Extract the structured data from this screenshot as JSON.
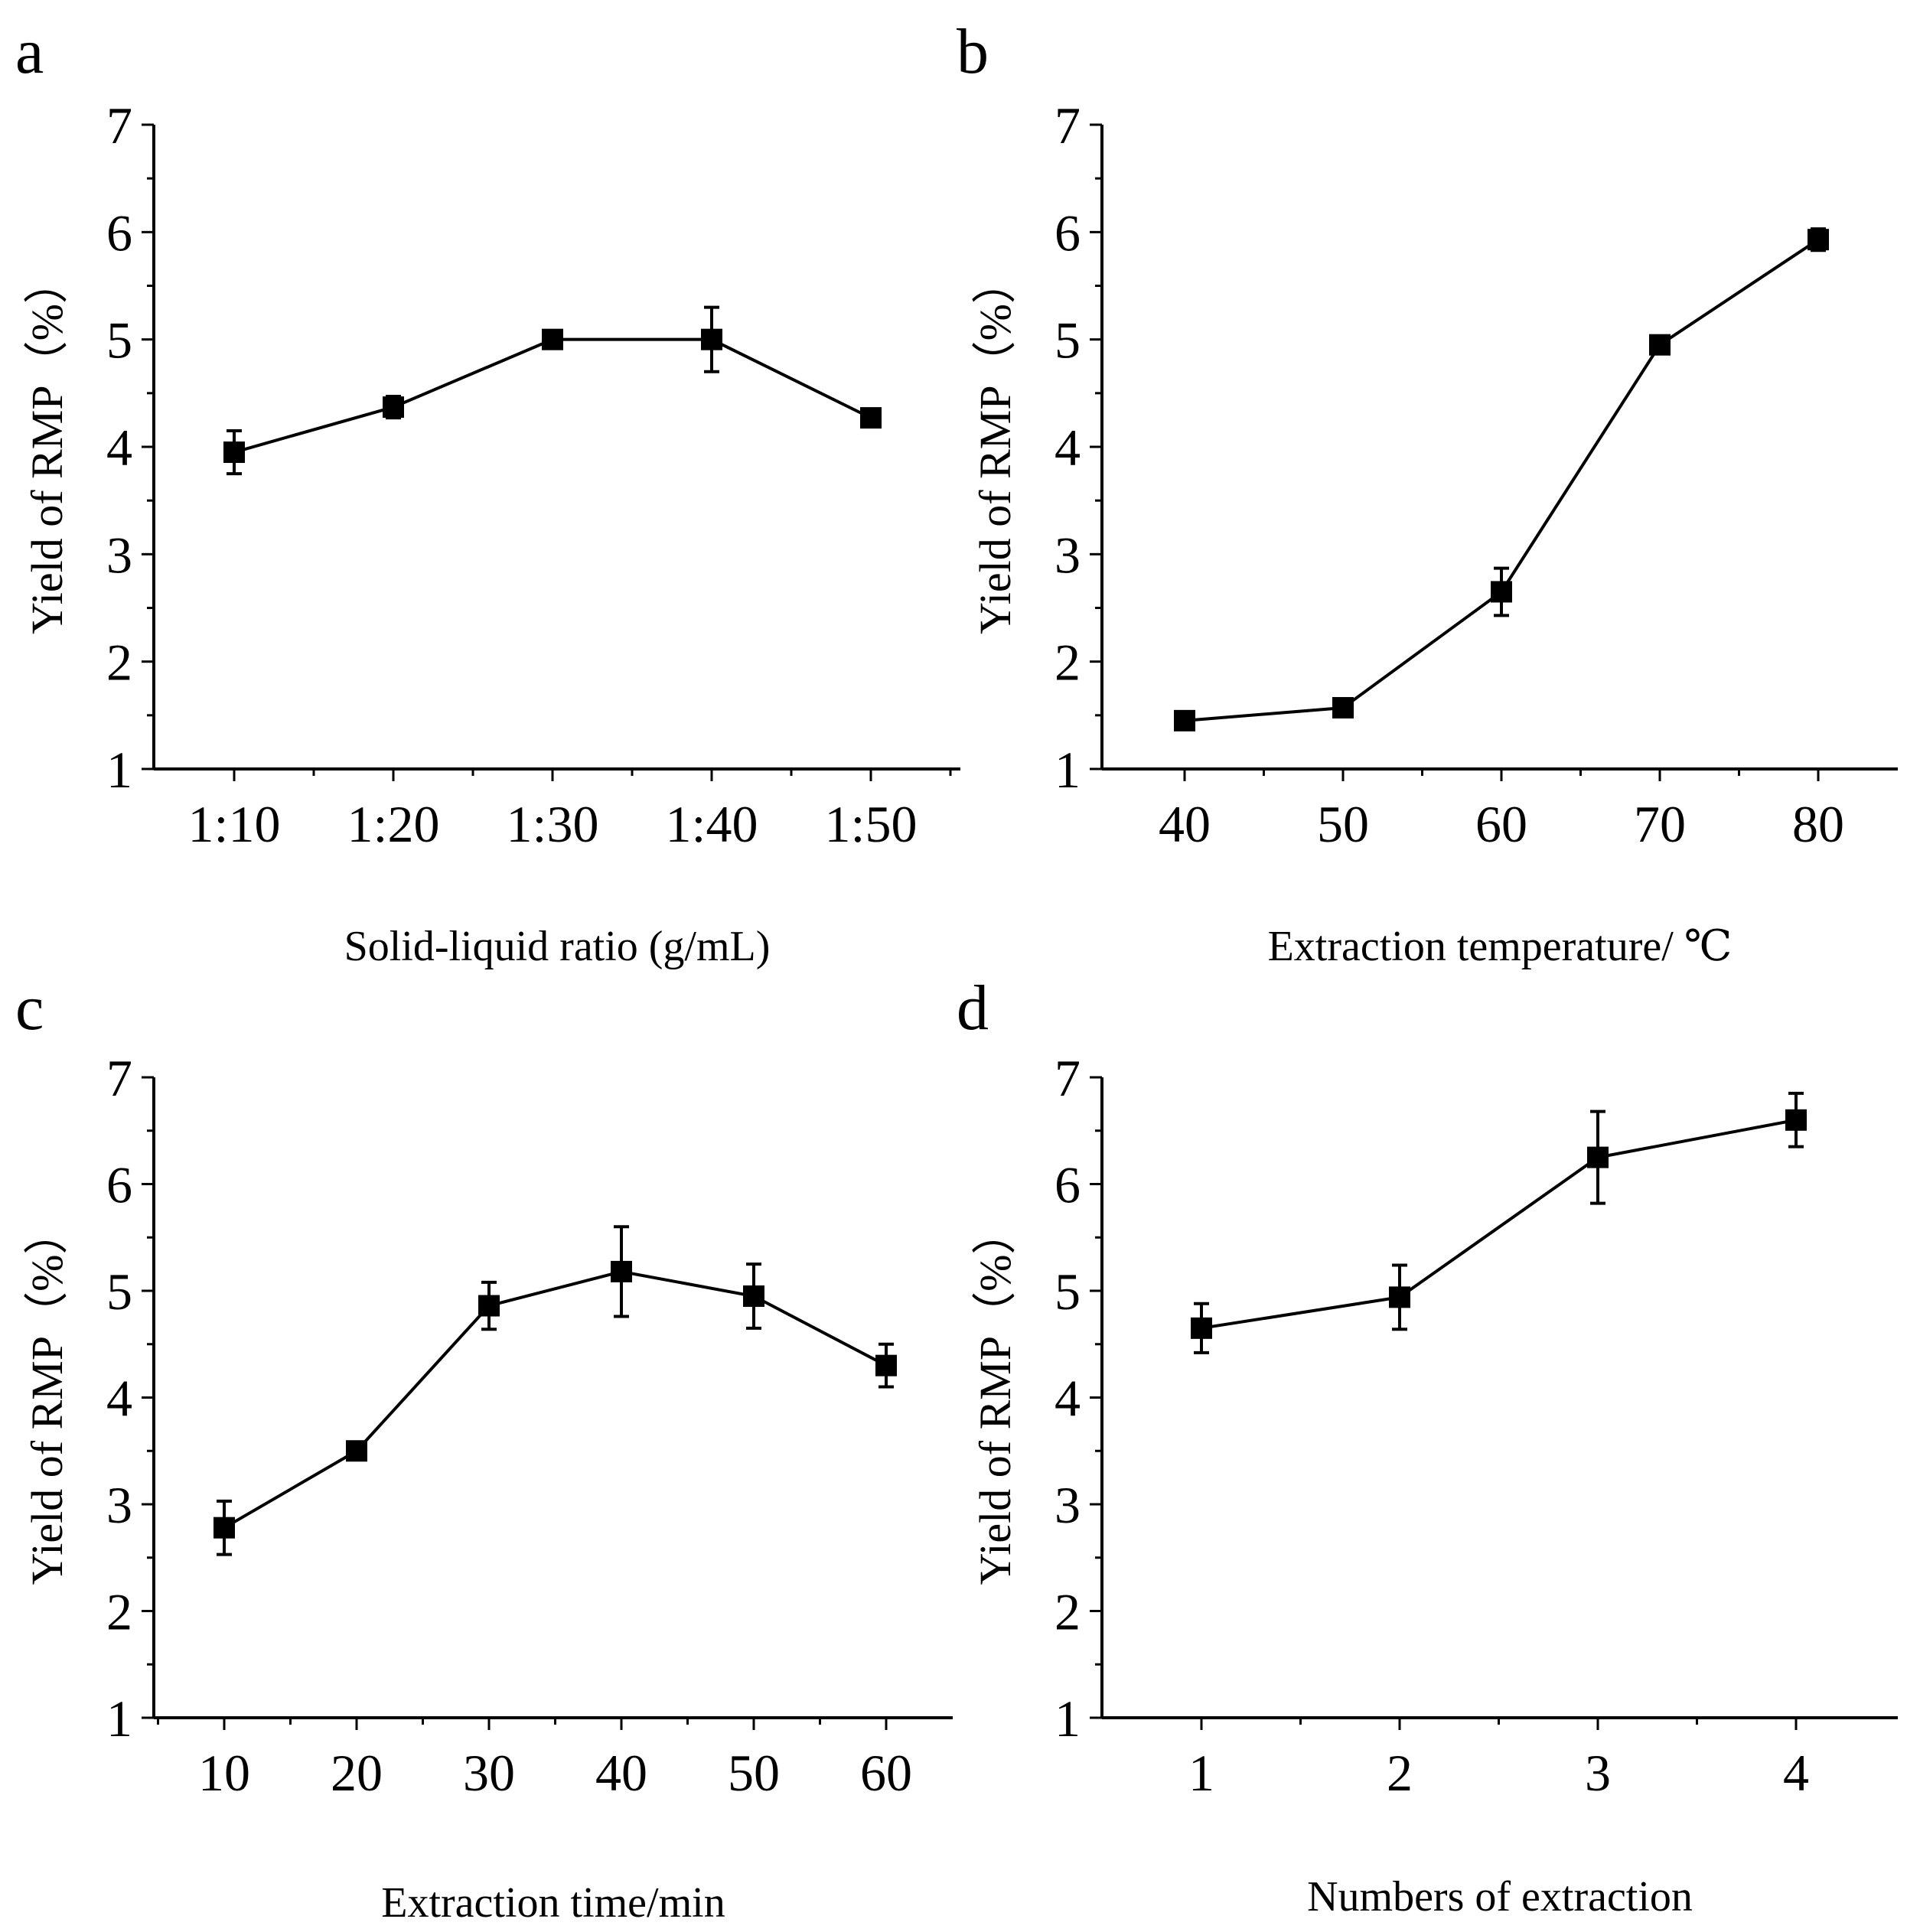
{
  "chart_data": [
    {
      "type": "line",
      "panel_label": "a",
      "xlabel": "Solid-liquid ratio (g/mL)",
      "ylabel": "Yield of RMP（%）",
      "categories": [
        "1:10",
        "1:20",
        "1:30",
        "1:40",
        "1:50"
      ],
      "values": [
        3.95,
        4.37,
        5.0,
        5.0,
        4.27
      ],
      "errors": [
        0.2,
        0.1,
        0.05,
        0.3,
        0.07
      ],
      "ylim": [
        1,
        7
      ],
      "yticks": [
        "1",
        "2",
        "3",
        "4",
        "5",
        "6",
        "7"
      ],
      "grid": false
    },
    {
      "type": "line",
      "panel_label": "b",
      "xlabel": "Extraction temperature/ ℃",
      "ylabel": "Yield of RMP（%）",
      "categories": [
        "40",
        "50",
        "60",
        "70",
        "80"
      ],
      "values": [
        1.45,
        1.57,
        2.65,
        4.95,
        5.93
      ],
      "errors": [
        0.05,
        0.05,
        0.22,
        0.05,
        0.1
      ],
      "ylim": [
        1,
        7
      ],
      "yticks": [
        "1",
        "2",
        "3",
        "4",
        "5",
        "6",
        "7"
      ],
      "grid": false
    },
    {
      "type": "line",
      "panel_label": "c",
      "xlabel": "Extraction time/min",
      "ylabel": "Yield of RMP（%）",
      "categories": [
        "10",
        "20",
        "30",
        "40",
        "50",
        "60"
      ],
      "values": [
        2.78,
        3.5,
        4.86,
        5.18,
        4.95,
        4.3
      ],
      "errors": [
        0.25,
        0.05,
        0.22,
        0.42,
        0.3,
        0.2
      ],
      "ylim": [
        1,
        7
      ],
      "yticks": [
        "1",
        "2",
        "3",
        "4",
        "5",
        "6",
        "7"
      ],
      "grid": false
    },
    {
      "type": "line",
      "panel_label": "d",
      "xlabel": "Numbers of extraction",
      "ylabel": "Yield of RMP（%）",
      "categories": [
        "1",
        "2",
        "3",
        "4"
      ],
      "values": [
        4.65,
        4.94,
        6.25,
        6.6
      ],
      "errors": [
        0.23,
        0.3,
        0.43,
        0.25
      ],
      "ylim": [
        1,
        7
      ],
      "yticks": [
        "1",
        "2",
        "3",
        "4",
        "5",
        "6",
        "7"
      ],
      "grid": false
    }
  ]
}
